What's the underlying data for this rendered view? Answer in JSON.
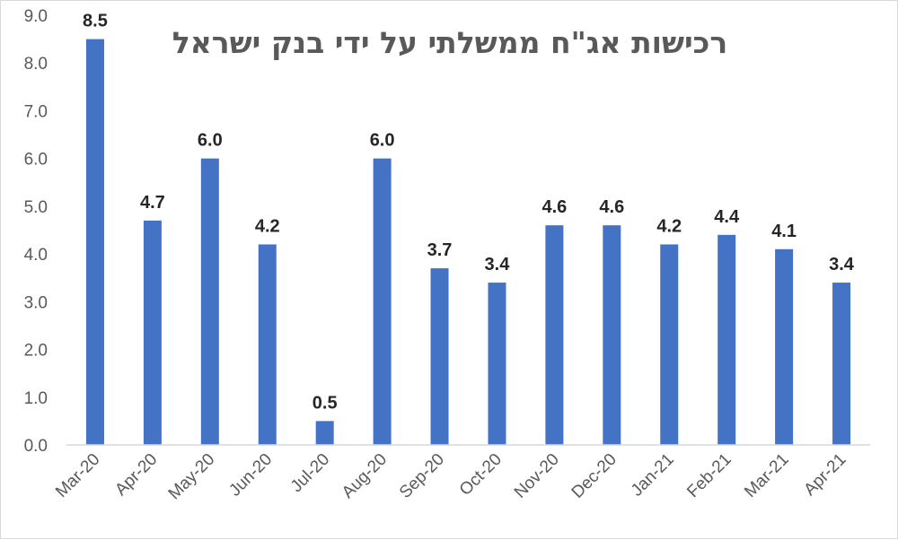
{
  "chart_data": {
    "type": "bar",
    "title": "רכישות אג\"ח ממשלתי על ידי בנק ישראל",
    "xlabel": "",
    "ylabel": "",
    "categories": [
      "Mar-20",
      "Apr-20",
      "May-20",
      "Jun-20",
      "Jul-20",
      "Aug-20",
      "Sep-20",
      "Oct-20",
      "Nov-20",
      "Dec-20",
      "Jan-21",
      "Feb-21",
      "Mar-21",
      "Apr-21"
    ],
    "values": [
      8.5,
      4.7,
      6.0,
      4.2,
      0.5,
      6.0,
      3.7,
      3.4,
      4.6,
      4.6,
      4.2,
      4.4,
      4.1,
      3.4
    ],
    "value_labels": [
      "8.5",
      "4.7",
      "6.0",
      "4.2",
      "0.5",
      "6.0",
      "3.7",
      "3.4",
      "4.6",
      "4.6",
      "4.2",
      "4.4",
      "4.1",
      "3.4"
    ],
    "ylim": [
      0,
      9
    ],
    "yticks": [
      "0.0",
      "1.0",
      "2.0",
      "3.0",
      "4.0",
      "5.0",
      "6.0",
      "7.0",
      "8.0",
      "9.0"
    ],
    "grid": false,
    "legend": "none",
    "bar_color": "#4472C4"
  }
}
